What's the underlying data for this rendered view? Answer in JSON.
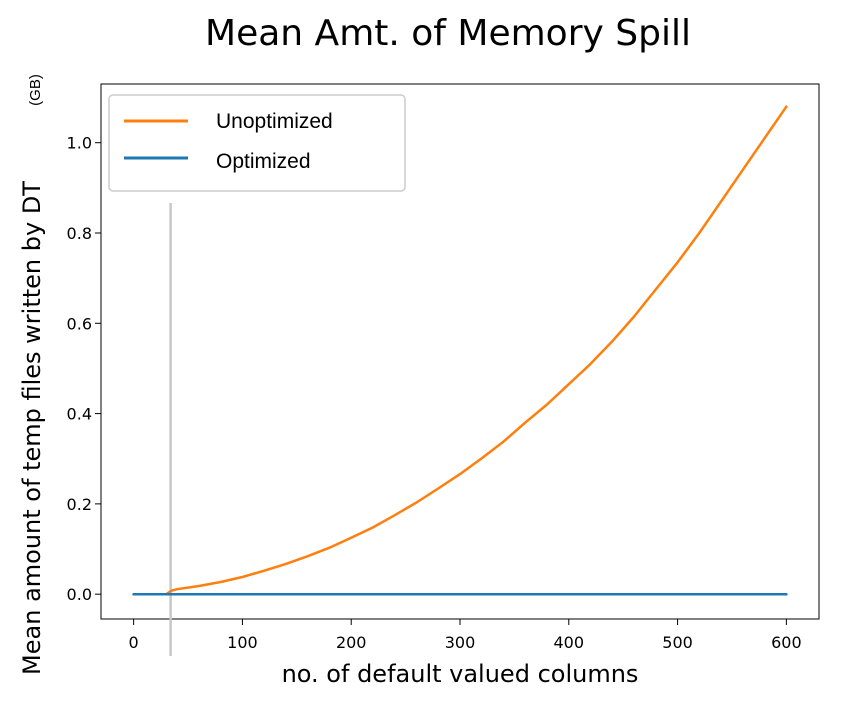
{
  "chart_data": {
    "type": "line",
    "title": "Mean Amt. of Memory Spill",
    "xlabel": "no. of default valued columns",
    "ylabel": "Mean amount of temp files written by DT",
    "ylabel_unit": "(GB)",
    "xlim": [
      -30,
      630
    ],
    "ylim": [
      -0.055,
      1.13
    ],
    "x_ticks": [
      0,
      100,
      200,
      300,
      400,
      500,
      600
    ],
    "y_ticks": [
      0.0,
      0.2,
      0.4,
      0.6,
      0.8,
      1.0
    ],
    "x_tick_labels": [
      "0",
      "100",
      "200",
      "300",
      "400",
      "500",
      "600"
    ],
    "y_tick_labels": [
      "0.0",
      "0.2",
      "0.4",
      "0.6",
      "0.8",
      "1.0"
    ],
    "grid": false,
    "legend_position": "upper-left",
    "vline_x": 34,
    "series": [
      {
        "name": "Unoptimized",
        "color": "#ff7f0e",
        "x": [
          0,
          30,
          35,
          40,
          60,
          80,
          100,
          120,
          140,
          160,
          180,
          200,
          220,
          240,
          260,
          280,
          300,
          320,
          340,
          360,
          380,
          400,
          420,
          440,
          460,
          480,
          500,
          520,
          540,
          560,
          580,
          600
        ],
        "y": [
          0.0,
          0.0,
          0.008,
          0.011,
          0.018,
          0.027,
          0.038,
          0.052,
          0.067,
          0.084,
          0.103,
          0.125,
          0.148,
          0.175,
          0.203,
          0.234,
          0.266,
          0.301,
          0.338,
          0.38,
          0.42,
          0.465,
          0.51,
          0.56,
          0.615,
          0.675,
          0.735,
          0.8,
          0.87,
          0.94,
          1.01,
          1.08
        ]
      },
      {
        "name": "Optimized",
        "color": "#1f77b4",
        "x": [
          0,
          100,
          200,
          300,
          400,
          500,
          600
        ],
        "y": [
          0,
          0,
          0,
          0,
          0,
          0,
          0
        ]
      }
    ]
  }
}
